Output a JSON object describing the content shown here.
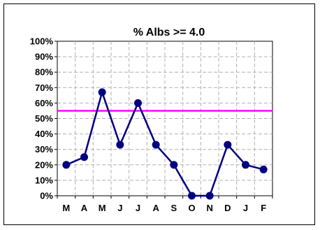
{
  "chart_data": {
    "type": "line",
    "title": "%  Albs >= 4.0",
    "xlabel": "",
    "ylabel": "",
    "categories": [
      "M",
      "A",
      "M",
      "J",
      "J",
      "A",
      "S",
      "O",
      "N",
      "D",
      "J",
      "F"
    ],
    "series": [
      {
        "values": [
          20,
          25,
          67,
          33,
          60,
          33,
          20,
          0,
          0,
          33,
          20,
          17
        ],
        "color": "#000080"
      }
    ],
    "reference_line": {
      "value": 55,
      "color": "#ff00ff"
    },
    "ylim": [
      0,
      100
    ],
    "y_ticks": [
      "0%",
      "10%",
      "20%",
      "30%",
      "40%",
      "50%",
      "60%",
      "70%",
      "80%",
      "90%",
      "100%"
    ],
    "grid": true,
    "legend": "none"
  }
}
